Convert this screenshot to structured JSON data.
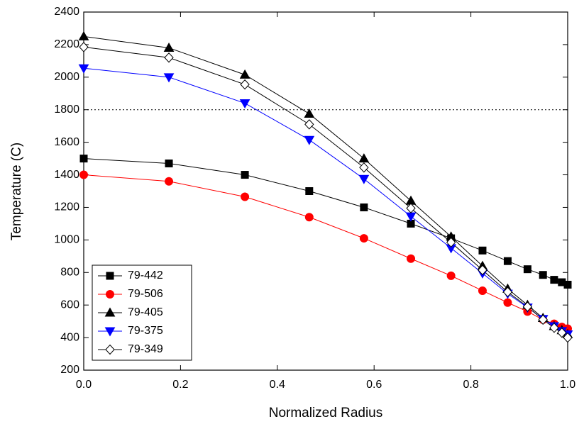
{
  "chart_data": {
    "type": "line",
    "x_label": "Normalized Radius",
    "y_label": "Temperature (C)",
    "x": [
      0,
      0.176,
      0.333,
      0.466,
      0.579,
      0.676,
      0.759,
      0.824,
      0.876,
      0.917,
      0.949,
      0.972,
      0.988,
      1.0
    ],
    "series": [
      {
        "name": "79-442",
        "color": "#000000",
        "marker": "square",
        "filled": true,
        "values": [
          1500,
          1470,
          1400,
          1300,
          1200,
          1100,
          1010,
          935,
          870,
          820,
          785,
          755,
          740,
          725
        ]
      },
      {
        "name": "79-506",
        "color": "#ff0000",
        "marker": "circle",
        "filled": true,
        "values": [
          1400,
          1360,
          1265,
          1140,
          1010,
          885,
          780,
          688,
          615,
          560,
          510,
          485,
          465,
          455
        ]
      },
      {
        "name": "79-405",
        "color": "#000000",
        "marker": "triangle-up",
        "filled": true,
        "values": [
          2250,
          2180,
          2015,
          1775,
          1500,
          1240,
          1020,
          840,
          700,
          600,
          520,
          470,
          445,
          420
        ]
      },
      {
        "name": "79-375",
        "color": "#0000ff",
        "marker": "triangle-down",
        "filled": true,
        "values": [
          2055,
          2000,
          1840,
          1615,
          1375,
          1145,
          950,
          795,
          670,
          585,
          515,
          470,
          440,
          420
        ]
      },
      {
        "name": "79-349",
        "color": "#000000",
        "marker": "diamond",
        "filled": false,
        "values": [
          2185,
          2120,
          1955,
          1710,
          1445,
          1195,
          985,
          815,
          680,
          590,
          510,
          460,
          430,
          400
        ]
      }
    ],
    "reference_line": 1800,
    "xlim": [
      0,
      1.0
    ],
    "xticks": [
      {
        "value": 0,
        "label": "0.0"
      },
      0.2,
      0.4,
      0.6,
      0.8,
      {
        "value": 1.0,
        "label": "1.0"
      }
    ],
    "ylim": [
      200,
      2400
    ],
    "yticks": [
      200,
      400,
      600,
      800,
      1000,
      1200,
      1400,
      1600,
      1800,
      2000,
      2200,
      2400
    ],
    "legend": "lower-left"
  }
}
